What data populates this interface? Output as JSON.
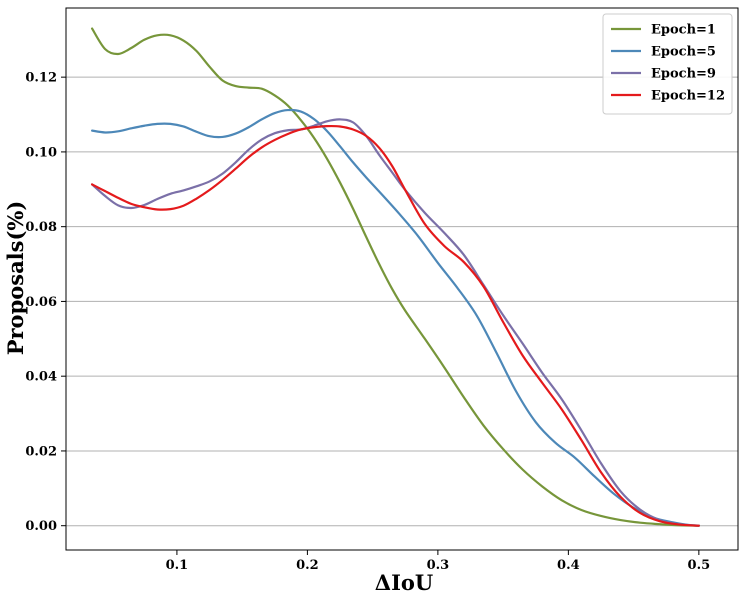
{
  "chart_data": {
    "type": "line",
    "title": "",
    "xlabel": "ΔIoU",
    "ylabel": "Proposals(%)",
    "xlim": [
      0.015,
      0.53
    ],
    "ylim": [
      -0.0065,
      0.1385
    ],
    "xticks": [
      0.1,
      0.2,
      0.3,
      0.4,
      0.5
    ],
    "xtick_labels": [
      "0.1",
      "0.2",
      "0.3",
      "0.4",
      "0.5"
    ],
    "yticks": [
      0.0,
      0.02,
      0.04,
      0.06,
      0.08,
      0.1,
      0.12
    ],
    "ytick_labels": [
      "0.00",
      "0.02",
      "0.04",
      "0.06",
      "0.08",
      "0.10",
      "0.12"
    ],
    "grid": "horizontal",
    "legend_position": "top-right",
    "series": [
      {
        "name": "Epoch=1",
        "color": "#77963a",
        "x": [
          0.035,
          0.045,
          0.055,
          0.065,
          0.075,
          0.085,
          0.095,
          0.105,
          0.115,
          0.125,
          0.135,
          0.145,
          0.155,
          0.165,
          0.175,
          0.185,
          0.195,
          0.205,
          0.215,
          0.225,
          0.235,
          0.245,
          0.255,
          0.265,
          0.275,
          0.29,
          0.305,
          0.32,
          0.335,
          0.35,
          0.365,
          0.38,
          0.395,
          0.41,
          0.425,
          0.44,
          0.455,
          0.47,
          0.485,
          0.5
        ],
        "y": [
          0.133,
          0.1275,
          0.1262,
          0.1278,
          0.13,
          0.1312,
          0.1312,
          0.1298,
          0.127,
          0.1228,
          0.1191,
          0.1176,
          0.1172,
          0.1169,
          0.1151,
          0.1124,
          0.1085,
          0.1038,
          0.0982,
          0.0918,
          0.0848,
          0.0773,
          0.07,
          0.0633,
          0.0575,
          0.05,
          0.0423,
          0.0343,
          0.0268,
          0.0205,
          0.015,
          0.0105,
          0.0068,
          0.0042,
          0.0026,
          0.0015,
          0.0008,
          0.0004,
          0.0001,
          0.0
        ]
      },
      {
        "name": "Epoch=5",
        "color": "#4d88b8",
        "x": [
          0.035,
          0.045,
          0.055,
          0.065,
          0.075,
          0.085,
          0.095,
          0.105,
          0.115,
          0.125,
          0.135,
          0.145,
          0.155,
          0.165,
          0.175,
          0.185,
          0.195,
          0.205,
          0.215,
          0.225,
          0.235,
          0.245,
          0.255,
          0.27,
          0.285,
          0.3,
          0.315,
          0.33,
          0.345,
          0.36,
          0.375,
          0.39,
          0.405,
          0.42,
          0.435,
          0.45,
          0.465,
          0.48,
          0.49,
          0.5
        ],
        "y": [
          0.1057,
          0.1052,
          0.1055,
          0.1063,
          0.107,
          0.1075,
          0.1075,
          0.1068,
          0.1054,
          0.1042,
          0.104,
          0.1049,
          0.1066,
          0.1087,
          0.1104,
          0.1112,
          0.1108,
          0.1088,
          0.1056,
          0.1015,
          0.0972,
          0.0932,
          0.0894,
          0.0836,
          0.0774,
          0.0703,
          0.0636,
          0.0561,
          0.0462,
          0.0359,
          0.0277,
          0.0222,
          0.0182,
          0.0132,
          0.0085,
          0.0048,
          0.0022,
          0.0009,
          0.0003,
          0.0
        ]
      },
      {
        "name": "Epoch=9",
        "color": "#7b70a8",
        "x": [
          0.035,
          0.045,
          0.055,
          0.065,
          0.075,
          0.085,
          0.095,
          0.105,
          0.115,
          0.125,
          0.135,
          0.145,
          0.155,
          0.165,
          0.175,
          0.185,
          0.195,
          0.205,
          0.215,
          0.225,
          0.235,
          0.245,
          0.255,
          0.265,
          0.275,
          0.29,
          0.305,
          0.32,
          0.335,
          0.35,
          0.365,
          0.38,
          0.395,
          0.41,
          0.425,
          0.44,
          0.455,
          0.47,
          0.485,
          0.5
        ],
        "y": [
          0.0913,
          0.0882,
          0.0857,
          0.085,
          0.0858,
          0.0874,
          0.0888,
          0.0897,
          0.0908,
          0.0921,
          0.0942,
          0.0972,
          0.1006,
          0.1033,
          0.105,
          0.1058,
          0.106,
          0.107,
          0.1082,
          0.1087,
          0.1079,
          0.1043,
          0.0992,
          0.0945,
          0.0898,
          0.0837,
          0.0783,
          0.0724,
          0.0644,
          0.0563,
          0.0487,
          0.0409,
          0.0338,
          0.0255,
          0.0167,
          0.0092,
          0.0043,
          0.0015,
          0.0004,
          0.0
        ]
      },
      {
        "name": "Epoch=12",
        "color": "#e41a1c",
        "x": [
          0.035,
          0.045,
          0.055,
          0.065,
          0.075,
          0.085,
          0.095,
          0.105,
          0.115,
          0.125,
          0.135,
          0.145,
          0.155,
          0.165,
          0.175,
          0.185,
          0.195,
          0.205,
          0.215,
          0.225,
          0.235,
          0.245,
          0.255,
          0.265,
          0.275,
          0.29,
          0.305,
          0.32,
          0.335,
          0.35,
          0.365,
          0.38,
          0.395,
          0.41,
          0.425,
          0.44,
          0.455,
          0.47,
          0.485,
          0.5
        ],
        "y": [
          0.0913,
          0.0895,
          0.0877,
          0.0861,
          0.0852,
          0.0846,
          0.0847,
          0.0856,
          0.0875,
          0.0898,
          0.0925,
          0.0955,
          0.0986,
          0.1012,
          0.1032,
          0.1048,
          0.106,
          0.1066,
          0.1069,
          0.1068,
          0.106,
          0.1043,
          0.1011,
          0.0962,
          0.0898,
          0.0807,
          0.0748,
          0.0705,
          0.064,
          0.0545,
          0.0455,
          0.0382,
          0.0311,
          0.0229,
          0.0143,
          0.0077,
          0.0034,
          0.0012,
          0.0003,
          0.0
        ]
      }
    ]
  }
}
